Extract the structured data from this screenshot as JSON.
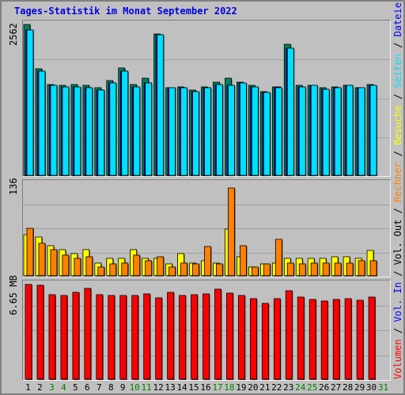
{
  "title": "Tages-Statistik im Monat September 2022",
  "colors": {
    "anfragen": "#008060",
    "dateien": "#0000ff",
    "seiten": "#00e0ff",
    "besuche": "#ffff00",
    "rechner": "#ff8000",
    "volumen": "#ff0000",
    "weekend_label": "#008000",
    "legend_sep": "#000000"
  },
  "legend": [
    {
      "text": "Volumen",
      "color": "#ff0000"
    },
    {
      "text": " / ",
      "color": "#000000"
    },
    {
      "text": "Vol. In",
      "color": "#0000ff"
    },
    {
      "text": " / ",
      "color": "#000000"
    },
    {
      "text": "Vol. Out",
      "color": "#000000"
    },
    {
      "text": " / ",
      "color": "#000000"
    },
    {
      "text": "Rechner",
      "color": "#ff8000"
    },
    {
      "text": " / ",
      "color": "#000000"
    },
    {
      "text": "Besuche",
      "color": "#ffff00"
    },
    {
      "text": " / ",
      "color": "#000000"
    },
    {
      "text": "Seiten",
      "color": "#00e0ff"
    },
    {
      "text": " / ",
      "color": "#000000"
    },
    {
      "text": "Dateien",
      "color": "#0000ff"
    },
    {
      "text": " / ",
      "color": "#000000"
    },
    {
      "text": "Anfragen",
      "color": "#008060"
    }
  ],
  "chart_data": [
    {
      "type": "bar",
      "panel": "hits",
      "ymax_label": "2562",
      "ylim": [
        0,
        2562
      ],
      "categories": [
        "1",
        "2",
        "3",
        "4",
        "5",
        "6",
        "7",
        "8",
        "9",
        "10",
        "11",
        "12",
        "13",
        "14",
        "15",
        "16",
        "17",
        "18",
        "19",
        "20",
        "21",
        "22",
        "23",
        "24",
        "25",
        "26",
        "27",
        "28",
        "29",
        "30",
        "31"
      ],
      "weekend_days": [
        "3",
        "4",
        "10",
        "11",
        "17",
        "18",
        "24",
        "25",
        "31"
      ],
      "series": [
        {
          "name": "Anfragen",
          "values": [
            2562,
            1806,
            1546,
            1526,
            1546,
            1526,
            1486,
            1606,
            1826,
            1546,
            1646,
            2402,
            1486,
            1506,
            1446,
            1506,
            1586,
            1646,
            1586,
            1526,
            1426,
            1506,
            2222,
            1526,
            1526,
            1486,
            1506,
            1526,
            1486,
            1546,
            null
          ]
        },
        {
          "name": "Dateien",
          "values": [
            2462,
            1766,
            1526,
            1506,
            1506,
            1486,
            1446,
            1566,
            1766,
            1506,
            1566,
            2382,
            1486,
            1486,
            1426,
            1486,
            1546,
            1526,
            1566,
            1506,
            1406,
            1506,
            2162,
            1506,
            1526,
            1466,
            1486,
            1526,
            1486,
            1526,
            null
          ]
        },
        {
          "name": "Seiten",
          "values": [
            2462,
            1766,
            1526,
            1506,
            1506,
            1486,
            1446,
            1566,
            1766,
            1506,
            1566,
            2382,
            1486,
            1486,
            1426,
            1486,
            1546,
            1526,
            1566,
            1506,
            1406,
            1486,
            2162,
            1506,
            1526,
            1466,
            1486,
            1526,
            1486,
            1526,
            null
          ]
        }
      ]
    },
    {
      "type": "bar",
      "panel": "visits",
      "ymax_label": "136",
      "ylim": [
        0,
        136
      ],
      "categories": [
        "1",
        "2",
        "3",
        "4",
        "5",
        "6",
        "7",
        "8",
        "9",
        "10",
        "11",
        "12",
        "13",
        "14",
        "15",
        "16",
        "17",
        "18",
        "19",
        "20",
        "21",
        "22",
        "23",
        "24",
        "25",
        "26",
        "27",
        "28",
        "29",
        "30",
        "31"
      ],
      "series": [
        {
          "name": "Besuche",
          "values": [
            61,
            57,
            45,
            39,
            33,
            39,
            19,
            26,
            26,
            39,
            26,
            26,
            17,
            33,
            19,
            22,
            19,
            69,
            28,
            13,
            17,
            19,
            26,
            26,
            26,
            26,
            28,
            28,
            26,
            37,
            null
          ]
        },
        {
          "name": "Rechner",
          "values": [
            70,
            48,
            39,
            30,
            26,
            28,
            13,
            17,
            19,
            30,
            22,
            28,
            13,
            19,
            17,
            43,
            17,
            130,
            45,
            13,
            17,
            54,
            19,
            17,
            19,
            19,
            19,
            19,
            22,
            22,
            null
          ]
        }
      ]
    },
    {
      "type": "bar",
      "panel": "volume",
      "ymax_label": "6.65 MB",
      "ylim": [
        0,
        6.65
      ],
      "categories": [
        "1",
        "2",
        "3",
        "4",
        "5",
        "6",
        "7",
        "8",
        "9",
        "10",
        "11",
        "12",
        "13",
        "14",
        "15",
        "16",
        "17",
        "18",
        "19",
        "20",
        "21",
        "22",
        "23",
        "24",
        "25",
        "26",
        "27",
        "28",
        "29",
        "30",
        "31"
      ],
      "series": [
        {
          "name": "Volumen",
          "values": [
            6.65,
            6.6,
            5.95,
            5.85,
            6.1,
            6.4,
            5.95,
            5.85,
            5.85,
            5.85,
            6.0,
            5.7,
            6.1,
            5.85,
            5.95,
            6.0,
            6.3,
            6.05,
            5.85,
            5.65,
            5.3,
            5.65,
            6.2,
            5.75,
            5.6,
            5.5,
            5.6,
            5.65,
            5.55,
            5.75,
            null
          ]
        }
      ]
    }
  ],
  "x_labels": [
    "1",
    "2",
    "3",
    "4",
    "5",
    "6",
    "7",
    "8",
    "9",
    "10",
    "11",
    "12",
    "13",
    "14",
    "15",
    "16",
    "17",
    "18",
    "19",
    "20",
    "21",
    "22",
    "23",
    "24",
    "25",
    "26",
    "27",
    "28",
    "29",
    "30",
    "31"
  ]
}
